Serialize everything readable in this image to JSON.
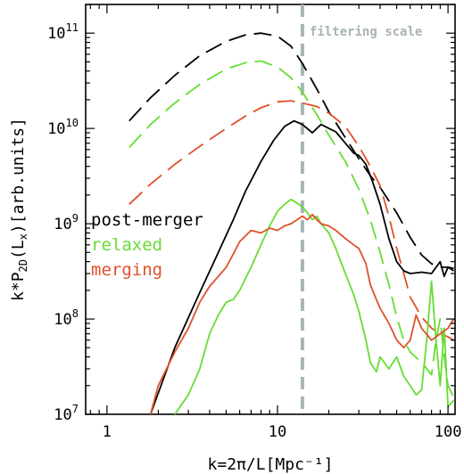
{
  "chart_data": {
    "type": "line",
    "xlabel": "k=2π/L[Mpc⁻¹]",
    "ylabel": "k*P",
    "ylabel_sub": "2D",
    "ylabel_mid": "(L",
    "ylabel_sub2": "x",
    "ylabel_end": ")[arb.units]",
    "x_scale": "log",
    "y_scale": "log",
    "xlim": [
      0.75,
      110
    ],
    "ylim": [
      10000000,
      200000000000
    ],
    "x_ticks": [
      {
        "value": 1,
        "label": "1"
      },
      {
        "value": 10,
        "label": "10"
      },
      {
        "value": 100,
        "label": "100"
      }
    ],
    "y_ticks": [
      {
        "exp": 7,
        "base": "10",
        "sup": "7"
      },
      {
        "exp": 8,
        "base": "10",
        "sup": "8"
      },
      {
        "exp": 9,
        "base": "10",
        "sup": "9"
      },
      {
        "exp": 10,
        "base": "10",
        "sup": "10"
      },
      {
        "exp": 11,
        "base": "10",
        "sup": "11"
      }
    ],
    "annotation": {
      "text": "filtering scale",
      "x": 14,
      "color": "#a8b4b4"
    },
    "legend": [
      {
        "label": "post-merger",
        "color": "#000000"
      },
      {
        "label": "relaxed",
        "color": "#66dd33"
      },
      {
        "label": "merging",
        "color": "#e0502a"
      }
    ],
    "series": [
      {
        "style": "dashed",
        "color": "#000000",
        "points": [
          [
            1.35,
            12000000000.0
          ],
          [
            1.8,
            21000000000.0
          ],
          [
            2.5,
            36000000000.0
          ],
          [
            3.5,
            58000000000.0
          ],
          [
            5,
            82000000000.0
          ],
          [
            6.5,
            96000000000.0
          ],
          [
            8,
            100000000000.0
          ],
          [
            10,
            93000000000.0
          ],
          [
            12,
            73000000000.0
          ],
          [
            14,
            48000000000.0
          ],
          [
            17,
            26000000000.0
          ],
          [
            20,
            15000000000.0
          ],
          [
            25,
            8000000000.0
          ],
          [
            30,
            4800000000.0
          ],
          [
            35,
            3200000000.0
          ],
          [
            40,
            2400000000.0
          ],
          [
            50,
            1300000000.0
          ],
          [
            60,
            720000000.0
          ],
          [
            70,
            470000000.0
          ],
          [
            80,
            380000000.0
          ],
          [
            90,
            350000000.0
          ],
          [
            100,
            350000000.0
          ],
          [
            108,
            340000000.0
          ]
        ]
      },
      {
        "style": "dashed",
        "color": "#66dd33",
        "points": [
          [
            1.35,
            6300000000.0
          ],
          [
            1.8,
            11000000000.0
          ],
          [
            2.5,
            18500000000.0
          ],
          [
            3.5,
            29000000000.0
          ],
          [
            5,
            42000000000.0
          ],
          [
            6.5,
            49000000000.0
          ],
          [
            8,
            51000000000.0
          ],
          [
            10,
            44000000000.0
          ],
          [
            12,
            34000000000.0
          ],
          [
            14,
            24000000000.0
          ],
          [
            17,
            14000000000.0
          ],
          [
            20,
            8500000000.0
          ],
          [
            25,
            4500000000.0
          ],
          [
            30,
            2300000000.0
          ],
          [
            35,
            1100000000.0
          ],
          [
            40,
            500000000.0
          ],
          [
            45,
            230000000.0
          ],
          [
            50,
            105000000.0
          ],
          [
            55,
            60000000.0
          ],
          [
            60,
            45000000.0
          ],
          [
            70,
            35000000.0
          ],
          [
            80,
            26000000.0
          ],
          [
            85,
            60000000.0
          ],
          [
            90,
            100000000.0
          ],
          [
            95,
            40000000.0
          ],
          [
            100,
            20000000.0
          ],
          [
            108,
            15000000.0
          ]
        ]
      },
      {
        "style": "dashed",
        "color": "#e0502a",
        "points": [
          [
            1.35,
            1600000000.0
          ],
          [
            1.8,
            2600000000.0
          ],
          [
            2.5,
            4200000000.0
          ],
          [
            3.5,
            6500000000.0
          ],
          [
            5,
            10000000000.0
          ],
          [
            6.5,
            13500000000.0
          ],
          [
            8,
            16500000000.0
          ],
          [
            10,
            19000000000.0
          ],
          [
            12,
            19500000000.0
          ],
          [
            14,
            18500000000.0
          ],
          [
            17,
            17000000000.0
          ],
          [
            20,
            14500000000.0
          ],
          [
            25,
            10500000000.0
          ],
          [
            30,
            6500000000.0
          ],
          [
            35,
            4000000000.0
          ],
          [
            40,
            2500000000.0
          ],
          [
            45,
            1200000000.0
          ],
          [
            50,
            550000000.0
          ],
          [
            55,
            300000000.0
          ],
          [
            60,
            170000000.0
          ],
          [
            70,
            105000000.0
          ],
          [
            80,
            80000000.0
          ],
          [
            90,
            70000000.0
          ],
          [
            100,
            65000000.0
          ],
          [
            108,
            60000000.0
          ]
        ]
      },
      {
        "style": "solid",
        "color": "#000000",
        "points": [
          [
            1.8,
            10000000.0
          ],
          [
            2.5,
            50000000.0
          ],
          [
            3.5,
            190000000.0
          ],
          [
            4.5,
            500000000.0
          ],
          [
            5.5,
            1100000000.0
          ],
          [
            6.5,
            2200000000.0
          ],
          [
            8,
            4500000000.0
          ],
          [
            9.5,
            7500000000.0
          ],
          [
            11,
            10500000000.0
          ],
          [
            12.5,
            12000000000.0
          ],
          [
            14,
            11000000000.0
          ],
          [
            16,
            9000000000.0
          ],
          [
            18,
            11000000000.0
          ],
          [
            20,
            10000000000.0
          ],
          [
            22,
            9200000000.0
          ],
          [
            25,
            7000000000.0
          ],
          [
            28,
            5500000000.0
          ],
          [
            30,
            5200000000.0
          ],
          [
            33,
            4200000000.0
          ],
          [
            36,
            2800000000.0
          ],
          [
            40,
            1600000000.0
          ],
          [
            45,
            700000000.0
          ],
          [
            50,
            400000000.0
          ],
          [
            55,
            320000000.0
          ],
          [
            60,
            300000000.0
          ],
          [
            70,
            310000000.0
          ],
          [
            80,
            300000000.0
          ],
          [
            90,
            400000000.0
          ],
          [
            95,
            280000000.0
          ],
          [
            100,
            350000000.0
          ],
          [
            108,
            320000000.0
          ]
        ]
      },
      {
        "style": "solid",
        "color": "#66dd33",
        "points": [
          [
            2.5,
            10000000.0
          ],
          [
            3,
            16000000.0
          ],
          [
            3.5,
            30000000.0
          ],
          [
            4,
            70000000.0
          ],
          [
            4.5,
            110000000.0
          ],
          [
            5,
            150000000.0
          ],
          [
            5.5,
            160000000.0
          ],
          [
            6,
            200000000.0
          ],
          [
            7,
            350000000.0
          ],
          [
            8,
            600000000.0
          ],
          [
            9,
            950000000.0
          ],
          [
            10,
            1350000000.0
          ],
          [
            11,
            1600000000.0
          ],
          [
            12,
            1800000000.0
          ],
          [
            13,
            1650000000.0
          ],
          [
            14,
            1500000000.0
          ],
          [
            15,
            1300000000.0
          ],
          [
            16,
            1100000000.0
          ],
          [
            17,
            1200000000.0
          ],
          [
            18,
            1000000000.0
          ],
          [
            20,
            800000000.0
          ],
          [
            22,
            550000000.0
          ],
          [
            25,
            300000000.0
          ],
          [
            28,
            180000000.0
          ],
          [
            30,
            120000000.0
          ],
          [
            33,
            60000000.0
          ],
          [
            35,
            35000000.0
          ],
          [
            38,
            28000000.0
          ],
          [
            40,
            40000000.0
          ],
          [
            45,
            30000000.0
          ],
          [
            50,
            40000000.0
          ],
          [
            55,
            25000000.0
          ],
          [
            60,
            20000000.0
          ],
          [
            65,
            16000000.0
          ],
          [
            70,
            18000000.0
          ],
          [
            75,
            60000000.0
          ],
          [
            80,
            250000000.0
          ],
          [
            85,
            60000000.0
          ],
          [
            90,
            20000000.0
          ],
          [
            95,
            80000000.0
          ],
          [
            100,
            12000000.0
          ],
          [
            108,
            14000000.0
          ]
        ]
      },
      {
        "style": "solid",
        "color": "#e0502a",
        "points": [
          [
            1.8,
            10000000.0
          ],
          [
            2,
            20000000.0
          ],
          [
            2.5,
            45000000.0
          ],
          [
            3,
            80000000.0
          ],
          [
            3.5,
            150000000.0
          ],
          [
            4,
            220000000.0
          ],
          [
            4.5,
            280000000.0
          ],
          [
            5,
            350000000.0
          ],
          [
            5.5,
            480000000.0
          ],
          [
            6,
            650000000.0
          ],
          [
            7,
            850000000.0
          ],
          [
            8,
            800000000.0
          ],
          [
            9,
            900000000.0
          ],
          [
            10,
            850000000.0
          ],
          [
            11,
            950000000.0
          ],
          [
            12,
            1000000000.0
          ],
          [
            13,
            1100000000.0
          ],
          [
            14,
            1200000000.0
          ],
          [
            15,
            1100000000.0
          ],
          [
            16,
            1250000000.0
          ],
          [
            17,
            1100000000.0
          ],
          [
            18,
            1000000000.0
          ],
          [
            20,
            950000000.0
          ],
          [
            22,
            850000000.0
          ],
          [
            25,
            700000000.0
          ],
          [
            28,
            600000000.0
          ],
          [
            30,
            550000000.0
          ],
          [
            33,
            380000000.0
          ],
          [
            35,
            230000000.0
          ],
          [
            38,
            160000000.0
          ],
          [
            40,
            130000000.0
          ],
          [
            45,
            90000000.0
          ],
          [
            50,
            60000000.0
          ],
          [
            55,
            50000000.0
          ],
          [
            60,
            60000000.0
          ],
          [
            65,
            110000000.0
          ],
          [
            70,
            80000000.0
          ],
          [
            80,
            60000000.0
          ],
          [
            90,
            70000000.0
          ],
          [
            100,
            80000000.0
          ],
          [
            108,
            100000000.0
          ]
        ]
      }
    ]
  }
}
